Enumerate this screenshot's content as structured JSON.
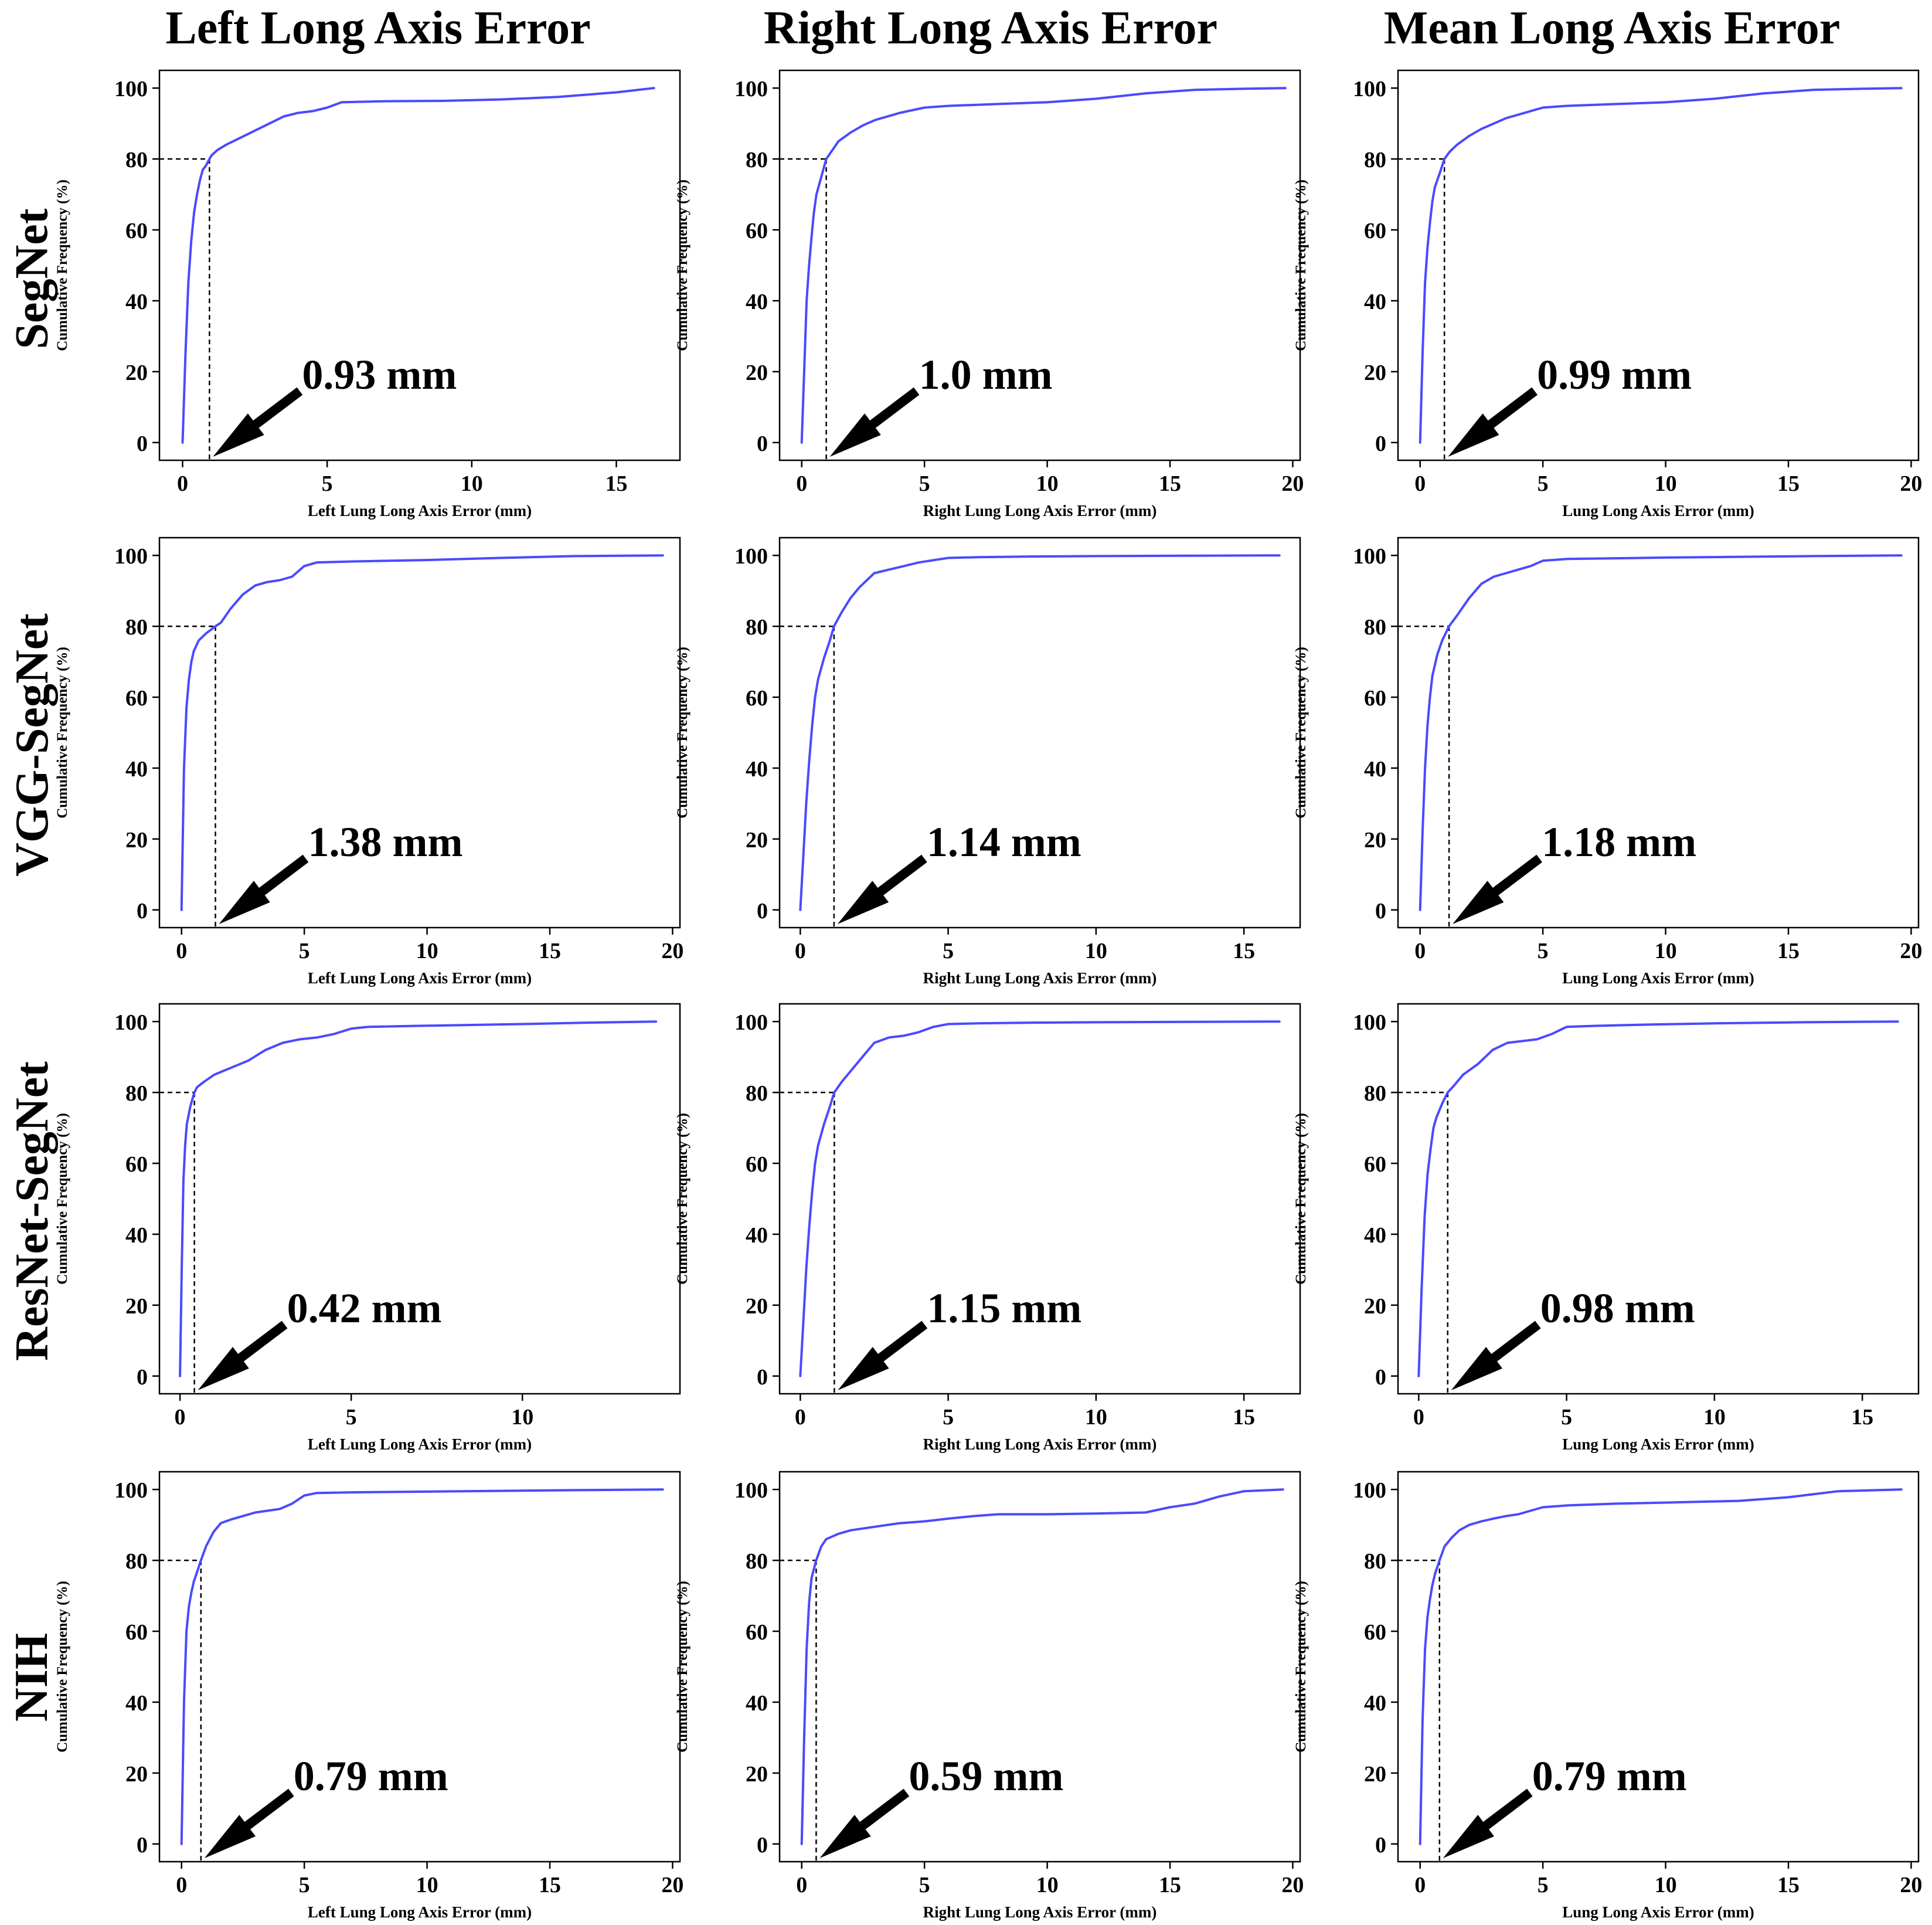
{
  "figure": {
    "column_titles": [
      "Left Long Axis Error",
      "Right Long Axis Error",
      "Mean Long Axis Error"
    ],
    "row_titles": [
      "SegNet",
      "VGG-SegNet",
      "ResNet-SegNet",
      "NIH"
    ]
  },
  "colors": {
    "curve": "#4a4aff",
    "guide": "#000000",
    "frame": "#000000"
  },
  "chart_data": [
    {
      "type": "line",
      "row": 0,
      "col": 0,
      "ylabel": "Cumulative Frequency (%)",
      "xlabel": "Left Lung Long Axis Error (mm)",
      "xlim": [
        -0.8,
        17.2
      ],
      "ylim": [
        -5,
        105
      ],
      "xticks": [
        0,
        5,
        10,
        15
      ],
      "yticks": [
        0,
        20,
        40,
        60,
        80,
        100
      ],
      "threshold": 0.93,
      "annotation": "0.93 mm",
      "x": [
        0,
        0.1,
        0.2,
        0.3,
        0.4,
        0.5,
        0.6,
        0.7,
        0.8,
        0.93,
        1.0,
        1.2,
        1.5,
        2,
        2.5,
        3,
        3.5,
        4,
        4.5,
        5,
        5.5,
        7,
        9,
        11,
        13,
        15,
        16.3
      ],
      "y": [
        0,
        25,
        45,
        57,
        65,
        70,
        74,
        77,
        78,
        80,
        81,
        82.5,
        84,
        86,
        88,
        90,
        92,
        93,
        93.5,
        94.5,
        96,
        96.3,
        96.4,
        96.8,
        97.5,
        98.8,
        100
      ]
    },
    {
      "type": "line",
      "row": 0,
      "col": 1,
      "ylabel": "Cumulative Frequency (%)",
      "xlabel": "Right Lung Long Axis Error (mm)",
      "xlim": [
        -0.9,
        20.3
      ],
      "ylim": [
        -5,
        105
      ],
      "xticks": [
        0,
        5,
        10,
        15,
        20
      ],
      "yticks": [
        0,
        20,
        40,
        60,
        80,
        100
      ],
      "threshold": 1.0,
      "annotation": "1.0 mm",
      "x": [
        0,
        0.1,
        0.2,
        0.3,
        0.4,
        0.5,
        0.6,
        0.8,
        1.0,
        1.2,
        1.5,
        2,
        2.5,
        3,
        3.5,
        4,
        5,
        6,
        8,
        10,
        12,
        14,
        16,
        18,
        19.7
      ],
      "y": [
        0,
        20,
        40,
        50,
        58,
        65,
        70,
        75,
        80,
        82,
        85,
        87.5,
        89.5,
        91,
        92,
        93,
        94.5,
        95,
        95.5,
        96,
        97,
        98.5,
        99.5,
        99.8,
        100
      ]
    },
    {
      "type": "line",
      "row": 0,
      "col": 2,
      "ylabel": "Cumulative Frequency (%)",
      "xlabel": "Lung Long Axis Error (mm)",
      "xlim": [
        -0.9,
        20.3
      ],
      "ylim": [
        -5,
        105
      ],
      "xticks": [
        0,
        5,
        10,
        15,
        20
      ],
      "yticks": [
        0,
        20,
        40,
        60,
        80,
        100
      ],
      "threshold": 0.99,
      "annotation": "0.99 mm",
      "x": [
        0,
        0.1,
        0.2,
        0.3,
        0.4,
        0.5,
        0.6,
        0.8,
        0.99,
        1.2,
        1.5,
        2,
        2.5,
        3,
        3.5,
        4,
        5,
        6,
        8,
        10,
        12,
        14,
        16,
        18,
        19.6
      ],
      "y": [
        0,
        25,
        45,
        55,
        62,
        68,
        72,
        76,
        80,
        82,
        84,
        86.5,
        88.5,
        90,
        91.5,
        92.5,
        94.5,
        95,
        95.5,
        96,
        97,
        98.5,
        99.5,
        99.8,
        100
      ]
    },
    {
      "type": "line",
      "row": 1,
      "col": 0,
      "ylabel": "Cumulative Frequency (%)",
      "xlabel": "Left Lung Long Axis Error (mm)",
      "xlim": [
        -0.9,
        20.3
      ],
      "ylim": [
        -5,
        105
      ],
      "xticks": [
        0,
        5,
        10,
        15,
        20
      ],
      "yticks": [
        0,
        20,
        40,
        60,
        80,
        100
      ],
      "threshold": 1.38,
      "annotation": "1.38 mm",
      "x": [
        0,
        0.1,
        0.2,
        0.3,
        0.4,
        0.5,
        0.7,
        1.0,
        1.38,
        1.6,
        2,
        2.5,
        3,
        3.5,
        4,
        4.5,
        5,
        5.5,
        7,
        10,
        13,
        16,
        19.6
      ],
      "y": [
        0,
        40,
        57,
        65,
        70,
        73,
        76,
        78,
        80,
        81,
        85,
        89,
        91.5,
        92.5,
        93,
        94,
        97,
        98,
        98.3,
        98.7,
        99.3,
        99.8,
        100
      ]
    },
    {
      "type": "line",
      "row": 1,
      "col": 1,
      "ylabel": "Cumulative Frequency (%)",
      "xlabel": "Right Lung Long Axis Error (mm)",
      "xlim": [
        -0.7,
        16.9
      ],
      "ylim": [
        -5,
        105
      ],
      "xticks": [
        0,
        5,
        10,
        15
      ],
      "yticks": [
        0,
        20,
        40,
        60,
        80,
        100
      ],
      "threshold": 1.14,
      "annotation": "1.14 mm",
      "x": [
        0,
        0.1,
        0.2,
        0.3,
        0.4,
        0.5,
        0.6,
        0.8,
        1.0,
        1.14,
        1.4,
        1.7,
        2,
        2.5,
        3,
        3.5,
        4,
        5,
        6,
        8,
        10,
        13,
        16.2
      ],
      "y": [
        0,
        15,
        30,
        42,
        52,
        60,
        65,
        71,
        76,
        80,
        84,
        88,
        91,
        95,
        96,
        97,
        98,
        99.3,
        99.5,
        99.7,
        99.8,
        99.9,
        100
      ]
    },
    {
      "type": "line",
      "row": 1,
      "col": 2,
      "ylabel": "Cumulative Frequency (%)",
      "xlabel": "Lung Long Axis Error (mm)",
      "xlim": [
        -0.9,
        20.3
      ],
      "ylim": [
        -5,
        105
      ],
      "xticks": [
        0,
        5,
        10,
        15,
        20
      ],
      "yticks": [
        0,
        20,
        40,
        60,
        80,
        100
      ],
      "threshold": 1.18,
      "annotation": "1.18 mm",
      "x": [
        0,
        0.1,
        0.2,
        0.3,
        0.4,
        0.5,
        0.7,
        0.9,
        1.18,
        1.5,
        2,
        2.5,
        3,
        3.5,
        4,
        4.5,
        5,
        6,
        8,
        10,
        13,
        16,
        19.6
      ],
      "y": [
        0,
        22,
        40,
        52,
        60,
        66,
        72,
        76,
        80,
        83,
        88,
        92,
        94,
        95,
        96,
        97,
        98.5,
        99,
        99.2,
        99.4,
        99.6,
        99.8,
        100
      ]
    },
    {
      "type": "line",
      "row": 2,
      "col": 0,
      "ylabel": "Cumulative Frequency (%)",
      "xlabel": "Left Lung Long Axis Error (mm)",
      "xlim": [
        -0.6,
        14.6
      ],
      "ylim": [
        -5,
        105
      ],
      "xticks": [
        0,
        5,
        10
      ],
      "yticks": [
        0,
        20,
        40,
        60,
        80,
        100
      ],
      "threshold": 0.42,
      "annotation": "0.42 mm",
      "x": [
        0,
        0.05,
        0.1,
        0.15,
        0.2,
        0.3,
        0.42,
        0.5,
        0.7,
        1,
        1.5,
        2,
        2.5,
        3,
        3.5,
        4,
        4.5,
        5,
        5.5,
        7,
        10,
        12,
        13.9
      ],
      "y": [
        0,
        30,
        55,
        65,
        71,
        76,
        80,
        81.5,
        83,
        85,
        87,
        89,
        92,
        94,
        95,
        95.5,
        96.5,
        98,
        98.5,
        98.8,
        99.3,
        99.7,
        100
      ]
    },
    {
      "type": "line",
      "row": 2,
      "col": 1,
      "ylabel": "Cumulative Frequency (%)",
      "xlabel": "Right Lung Long Axis Error (mm)",
      "xlim": [
        -0.7,
        16.9
      ],
      "ylim": [
        -5,
        105
      ],
      "xticks": [
        0,
        5,
        10,
        15
      ],
      "yticks": [
        0,
        20,
        40,
        60,
        80,
        100
      ],
      "threshold": 1.15,
      "annotation": "1.15 mm",
      "x": [
        0,
        0.1,
        0.2,
        0.3,
        0.4,
        0.5,
        0.6,
        0.8,
        1.0,
        1.15,
        1.4,
        1.7,
        2,
        2.5,
        3,
        3.5,
        4,
        4.5,
        5,
        6,
        8,
        10,
        13,
        16.2
      ],
      "y": [
        0,
        15,
        30,
        42,
        52,
        60,
        65,
        71,
        76,
        80,
        83,
        86,
        89,
        94,
        95.5,
        96,
        97,
        98.5,
        99.3,
        99.5,
        99.7,
        99.8,
        99.9,
        100
      ]
    },
    {
      "type": "line",
      "row": 2,
      "col": 2,
      "ylabel": "Cumulative Frequency (%)",
      "xlabel": "Lung Long Axis Error (mm)",
      "xlim": [
        -0.7,
        16.9
      ],
      "ylim": [
        -5,
        105
      ],
      "xticks": [
        0,
        5,
        10,
        15
      ],
      "yticks": [
        0,
        20,
        40,
        60,
        80,
        100
      ],
      "threshold": 0.98,
      "annotation": "0.98 mm",
      "x": [
        0,
        0.1,
        0.2,
        0.3,
        0.4,
        0.5,
        0.6,
        0.8,
        0.98,
        1.2,
        1.5,
        2,
        2.5,
        3,
        3.5,
        4,
        4.5,
        5,
        6,
        8,
        10,
        13,
        16.2
      ],
      "y": [
        0,
        25,
        45,
        57,
        64,
        70,
        73,
        77,
        80,
        82,
        85,
        88,
        92,
        94,
        94.5,
        95,
        96.5,
        98.5,
        98.8,
        99.2,
        99.5,
        99.8,
        100
      ]
    },
    {
      "type": "line",
      "row": 3,
      "col": 0,
      "ylabel": "Cumulative Frequency (%)",
      "xlabel": "Left Lung Long Axis Error (mm)",
      "xlim": [
        -0.9,
        20.3
      ],
      "ylim": [
        -5,
        105
      ],
      "xticks": [
        0,
        5,
        10,
        15,
        20
      ],
      "yticks": [
        0,
        20,
        40,
        60,
        80,
        100
      ],
      "threshold": 0.79,
      "annotation": "0.79 mm",
      "x": [
        0,
        0.1,
        0.2,
        0.3,
        0.4,
        0.5,
        0.6,
        0.79,
        1.0,
        1.3,
        1.6,
        2,
        2.5,
        3,
        3.5,
        4,
        4.5,
        5,
        5.5,
        7,
        10,
        13,
        16,
        19.6
      ],
      "y": [
        0,
        40,
        60,
        67,
        71,
        74,
        76,
        80,
        84,
        88,
        90.5,
        91.5,
        92.5,
        93.5,
        94,
        94.5,
        96,
        98.3,
        99,
        99.2,
        99.4,
        99.6,
        99.8,
        100
      ]
    },
    {
      "type": "line",
      "row": 3,
      "col": 1,
      "ylabel": "Cumulative Frequency (%)",
      "xlabel": "Right Lung Long Axis Error (mm)",
      "xlim": [
        -0.9,
        20.3
      ],
      "ylim": [
        -5,
        105
      ],
      "xticks": [
        0,
        5,
        10,
        15,
        20
      ],
      "yticks": [
        0,
        20,
        40,
        60,
        80,
        100
      ],
      "threshold": 0.59,
      "annotation": "0.59 mm",
      "x": [
        0,
        0.1,
        0.2,
        0.3,
        0.4,
        0.59,
        0.8,
        1.0,
        1.5,
        2,
        3,
        4,
        5,
        6,
        7,
        8,
        10,
        12,
        14,
        15,
        16,
        17,
        18,
        19.6
      ],
      "y": [
        0,
        30,
        55,
        68,
        75,
        80,
        84,
        86,
        87.5,
        88.5,
        89.5,
        90.5,
        91,
        91.8,
        92.5,
        93,
        93,
        93.2,
        93.5,
        95,
        96,
        98,
        99.5,
        100
      ]
    },
    {
      "type": "line",
      "row": 3,
      "col": 2,
      "ylabel": "Cumulative Frequency (%)",
      "xlabel": "Lung Long Axis Error (mm)",
      "xlim": [
        -0.9,
        20.3
      ],
      "ylim": [
        -5,
        105
      ],
      "xticks": [
        0,
        5,
        10,
        15,
        20
      ],
      "yticks": [
        0,
        20,
        40,
        60,
        80,
        100
      ],
      "threshold": 0.79,
      "annotation": "0.79 mm",
      "x": [
        0,
        0.1,
        0.2,
        0.3,
        0.4,
        0.5,
        0.6,
        0.79,
        1.0,
        1.3,
        1.6,
        2,
        2.5,
        3,
        3.5,
        4,
        4.5,
        5,
        6,
        8,
        10,
        13,
        15,
        17,
        19.6
      ],
      "y": [
        0,
        35,
        55,
        64,
        69,
        73,
        76,
        80,
        84,
        86.5,
        88.5,
        90,
        91,
        91.8,
        92.5,
        93,
        94,
        95,
        95.5,
        96,
        96.3,
        96.8,
        97.8,
        99.5,
        100
      ]
    }
  ]
}
